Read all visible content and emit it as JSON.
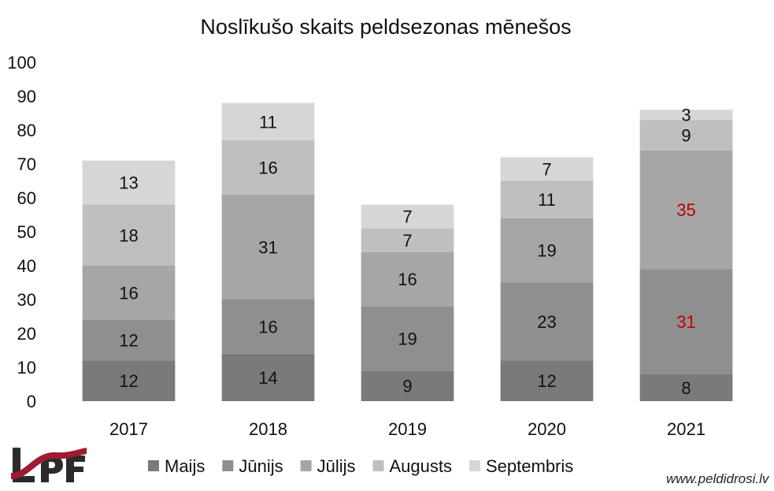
{
  "chart_data": {
    "type": "bar",
    "stacked": true,
    "title": "Noslīkušo skaits peldsezonas mēnešos",
    "categories": [
      "2017",
      "2018",
      "2019",
      "2020",
      "2021"
    ],
    "ylim": [
      0,
      100
    ],
    "yticks": [
      "0",
      "10",
      "20",
      "30",
      "40",
      "50",
      "60",
      "70",
      "80",
      "90",
      "100"
    ],
    "grid": false,
    "legend_position": "bottom",
    "series": [
      {
        "name": "Maijs",
        "color": "#7a7a7a",
        "values": [
          12,
          14,
          9,
          12,
          8
        ]
      },
      {
        "name": "Jūnijs",
        "color": "#8f8f8f",
        "values": [
          12,
          16,
          19,
          23,
          31
        ]
      },
      {
        "name": "Jūlijs",
        "color": "#a6a6a6",
        "values": [
          16,
          31,
          16,
          19,
          35
        ]
      },
      {
        "name": "Augusts",
        "color": "#bfbfbf",
        "values": [
          18,
          16,
          7,
          11,
          9
        ]
      },
      {
        "name": "Septembris",
        "color": "#d6d6d6",
        "values": [
          13,
          11,
          7,
          7,
          3
        ]
      }
    ],
    "highlight_label_color": "#c00000",
    "highlighted_labels": [
      {
        "category": "2021",
        "series": "Jūnijs"
      },
      {
        "category": "2021",
        "series": "Jūlijs"
      }
    ]
  },
  "logo": {
    "text": "LPF",
    "colors": {
      "dark": "#2b2b2b",
      "accent": "#9e1b32"
    }
  },
  "website": "www.peldidrosi.lv"
}
